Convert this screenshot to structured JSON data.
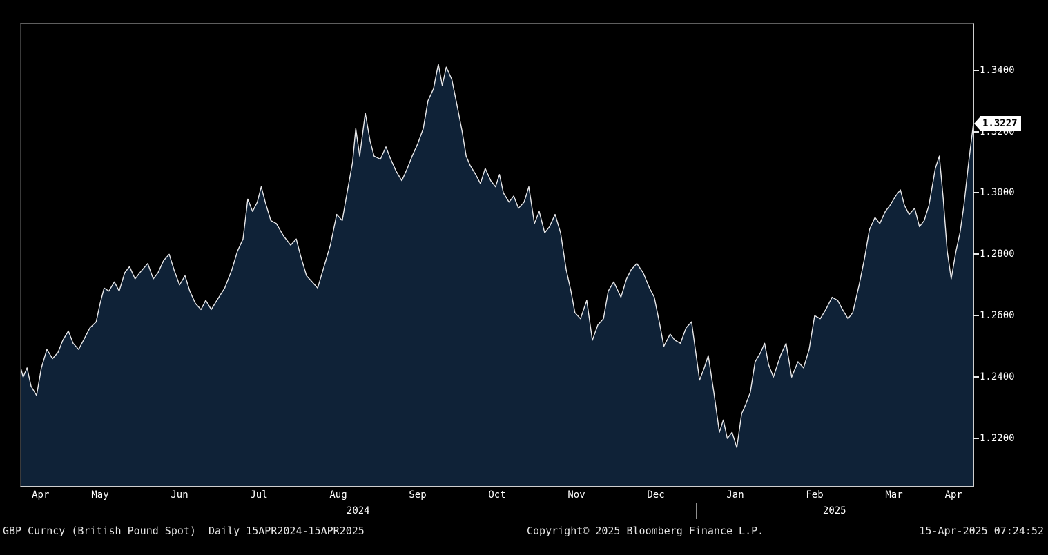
{
  "colors": {
    "background": "#000000",
    "area_fill": "#0f2237",
    "line": "#e8e8ea",
    "axis_text": "#ffffff",
    "last_price_bg": "#ffffff",
    "last_price_text": "#000000"
  },
  "status_bar": {
    "left": "GBP Curncy (British Pound Spot)  Daily 15APR2024-15APR2025",
    "center": "Copyright© 2025 Bloomberg Finance L.P.",
    "right": "15-Apr-2025 07:24:52"
  },
  "chart_data": {
    "type": "area",
    "title": "GBP Curncy (British Pound Spot)",
    "period": "Daily 15APR2024-15APR2025",
    "grid": false,
    "legend": "none",
    "y_axis_side": "right",
    "ylim": [
      1.2045,
      1.355
    ],
    "x_domain": [
      0.5,
      12.5
    ],
    "last_price": 1.3227,
    "last_price_label": "1.3227",
    "y_ticks": [
      {
        "value": 1.34,
        "label": "1.3400"
      },
      {
        "value": 1.32,
        "label": "1.3200"
      },
      {
        "value": 1.3,
        "label": "1.3000"
      },
      {
        "value": 1.28,
        "label": "1.2800"
      },
      {
        "value": 1.26,
        "label": "1.2600"
      },
      {
        "value": 1.24,
        "label": "1.2400"
      },
      {
        "value": 1.22,
        "label": "1.2200"
      }
    ],
    "x_months": [
      {
        "label": "Apr",
        "center": 0.75
      },
      {
        "label": "May",
        "center": 1.5
      },
      {
        "label": "Jun",
        "center": 2.5
      },
      {
        "label": "Jul",
        "center": 3.5
      },
      {
        "label": "Aug",
        "center": 4.5
      },
      {
        "label": "Sep",
        "center": 5.5
      },
      {
        "label": "Oct",
        "center": 6.5
      },
      {
        "label": "Nov",
        "center": 7.5
      },
      {
        "label": "Dec",
        "center": 8.5
      },
      {
        "label": "Jan",
        "center": 9.5
      },
      {
        "label": "Feb",
        "center": 10.5
      },
      {
        "label": "Mar",
        "center": 11.5
      },
      {
        "label": "Apr",
        "center": 12.25
      }
    ],
    "x_years": [
      {
        "label": "2024",
        "center": 4.75
      },
      {
        "label": "2025",
        "center": 10.75
      }
    ],
    "year_divider": 9.0,
    "points": [
      [
        0.47,
        1.246
      ],
      [
        0.53,
        1.24
      ],
      [
        0.58,
        1.243
      ],
      [
        0.63,
        1.237
      ],
      [
        0.7,
        1.234
      ],
      [
        0.76,
        1.243
      ],
      [
        0.83,
        1.249
      ],
      [
        0.9,
        1.246
      ],
      [
        0.97,
        1.248
      ],
      [
        1.03,
        1.252
      ],
      [
        1.1,
        1.255
      ],
      [
        1.16,
        1.251
      ],
      [
        1.23,
        1.249
      ],
      [
        1.29,
        1.252
      ],
      [
        1.37,
        1.256
      ],
      [
        1.45,
        1.258
      ],
      [
        1.5,
        1.264
      ],
      [
        1.55,
        1.269
      ],
      [
        1.61,
        1.268
      ],
      [
        1.68,
        1.271
      ],
      [
        1.74,
        1.268
      ],
      [
        1.81,
        1.274
      ],
      [
        1.87,
        1.276
      ],
      [
        1.94,
        1.272
      ],
      [
        2.0,
        1.274
      ],
      [
        2.1,
        1.277
      ],
      [
        2.17,
        1.272
      ],
      [
        2.23,
        1.274
      ],
      [
        2.3,
        1.278
      ],
      [
        2.37,
        1.28
      ],
      [
        2.43,
        1.275
      ],
      [
        2.5,
        1.27
      ],
      [
        2.57,
        1.273
      ],
      [
        2.63,
        1.268
      ],
      [
        2.7,
        1.264
      ],
      [
        2.77,
        1.262
      ],
      [
        2.83,
        1.265
      ],
      [
        2.9,
        1.262
      ],
      [
        2.97,
        1.265
      ],
      [
        3.07,
        1.269
      ],
      [
        3.16,
        1.275
      ],
      [
        3.23,
        1.281
      ],
      [
        3.3,
        1.285
      ],
      [
        3.36,
        1.298
      ],
      [
        3.42,
        1.294
      ],
      [
        3.48,
        1.297
      ],
      [
        3.53,
        1.302
      ],
      [
        3.58,
        1.297
      ],
      [
        3.65,
        1.291
      ],
      [
        3.72,
        1.29
      ],
      [
        3.81,
        1.286
      ],
      [
        3.9,
        1.283
      ],
      [
        3.97,
        1.285
      ],
      [
        4.03,
        1.279
      ],
      [
        4.1,
        1.273
      ],
      [
        4.17,
        1.271
      ],
      [
        4.24,
        1.269
      ],
      [
        4.32,
        1.276
      ],
      [
        4.4,
        1.283
      ],
      [
        4.48,
        1.293
      ],
      [
        4.55,
        1.291
      ],
      [
        4.61,
        1.3
      ],
      [
        4.68,
        1.31
      ],
      [
        4.72,
        1.321
      ],
      [
        4.77,
        1.312
      ],
      [
        4.84,
        1.326
      ],
      [
        4.9,
        1.317
      ],
      [
        4.95,
        1.312
      ],
      [
        5.03,
        1.311
      ],
      [
        5.1,
        1.315
      ],
      [
        5.16,
        1.311
      ],
      [
        5.23,
        1.307
      ],
      [
        5.3,
        1.304
      ],
      [
        5.37,
        1.308
      ],
      [
        5.43,
        1.312
      ],
      [
        5.5,
        1.316
      ],
      [
        5.57,
        1.321
      ],
      [
        5.63,
        1.33
      ],
      [
        5.7,
        1.334
      ],
      [
        5.76,
        1.342
      ],
      [
        5.81,
        1.335
      ],
      [
        5.86,
        1.341
      ],
      [
        5.93,
        1.337
      ],
      [
        6.0,
        1.328
      ],
      [
        6.06,
        1.32
      ],
      [
        6.11,
        1.312
      ],
      [
        6.16,
        1.309
      ],
      [
        6.23,
        1.306
      ],
      [
        6.29,
        1.303
      ],
      [
        6.35,
        1.308
      ],
      [
        6.42,
        1.304
      ],
      [
        6.48,
        1.302
      ],
      [
        6.53,
        1.306
      ],
      [
        6.58,
        1.3
      ],
      [
        6.65,
        1.297
      ],
      [
        6.71,
        1.299
      ],
      [
        6.77,
        1.295
      ],
      [
        6.84,
        1.297
      ],
      [
        6.9,
        1.302
      ],
      [
        6.97,
        1.29
      ],
      [
        7.03,
        1.294
      ],
      [
        7.1,
        1.287
      ],
      [
        7.16,
        1.289
      ],
      [
        7.23,
        1.293
      ],
      [
        7.3,
        1.287
      ],
      [
        7.37,
        1.275
      ],
      [
        7.43,
        1.268
      ],
      [
        7.48,
        1.261
      ],
      [
        7.55,
        1.259
      ],
      [
        7.63,
        1.265
      ],
      [
        7.7,
        1.252
      ],
      [
        7.77,
        1.257
      ],
      [
        7.84,
        1.259
      ],
      [
        7.9,
        1.268
      ],
      [
        7.97,
        1.271
      ],
      [
        8.06,
        1.266
      ],
      [
        8.13,
        1.272
      ],
      [
        8.19,
        1.275
      ],
      [
        8.26,
        1.277
      ],
      [
        8.34,
        1.274
      ],
      [
        8.42,
        1.269
      ],
      [
        8.48,
        1.266
      ],
      [
        8.55,
        1.257
      ],
      [
        8.6,
        1.25
      ],
      [
        8.68,
        1.254
      ],
      [
        8.74,
        1.252
      ],
      [
        8.81,
        1.251
      ],
      [
        8.88,
        1.256
      ],
      [
        8.95,
        1.258
      ],
      [
        9.05,
        1.239
      ],
      [
        9.11,
        1.243
      ],
      [
        9.16,
        1.247
      ],
      [
        9.23,
        1.235
      ],
      [
        9.3,
        1.222
      ],
      [
        9.35,
        1.226
      ],
      [
        9.4,
        1.22
      ],
      [
        9.46,
        1.222
      ],
      [
        9.52,
        1.217
      ],
      [
        9.58,
        1.228
      ],
      [
        9.63,
        1.231
      ],
      [
        9.69,
        1.235
      ],
      [
        9.75,
        1.245
      ],
      [
        9.82,
        1.248
      ],
      [
        9.87,
        1.251
      ],
      [
        9.92,
        1.244
      ],
      [
        9.98,
        1.24
      ],
      [
        10.07,
        1.247
      ],
      [
        10.14,
        1.251
      ],
      [
        10.21,
        1.24
      ],
      [
        10.29,
        1.245
      ],
      [
        10.36,
        1.243
      ],
      [
        10.43,
        1.249
      ],
      [
        10.5,
        1.26
      ],
      [
        10.57,
        1.259
      ],
      [
        10.64,
        1.262
      ],
      [
        10.72,
        1.266
      ],
      [
        10.79,
        1.265
      ],
      [
        10.85,
        1.262
      ],
      [
        10.92,
        1.259
      ],
      [
        10.98,
        1.261
      ],
      [
        11.06,
        1.27
      ],
      [
        11.13,
        1.279
      ],
      [
        11.19,
        1.288
      ],
      [
        11.26,
        1.292
      ],
      [
        11.32,
        1.29
      ],
      [
        11.39,
        1.294
      ],
      [
        11.45,
        1.296
      ],
      [
        11.52,
        1.299
      ],
      [
        11.58,
        1.301
      ],
      [
        11.63,
        1.296
      ],
      [
        11.69,
        1.293
      ],
      [
        11.76,
        1.295
      ],
      [
        11.82,
        1.289
      ],
      [
        11.88,
        1.291
      ],
      [
        11.94,
        1.296
      ],
      [
        12.02,
        1.308
      ],
      [
        12.07,
        1.312
      ],
      [
        12.12,
        1.298
      ],
      [
        12.17,
        1.281
      ],
      [
        12.22,
        1.272
      ],
      [
        12.28,
        1.281
      ],
      [
        12.33,
        1.287
      ],
      [
        12.38,
        1.296
      ],
      [
        12.44,
        1.31
      ],
      [
        12.5,
        1.3227
      ]
    ]
  }
}
